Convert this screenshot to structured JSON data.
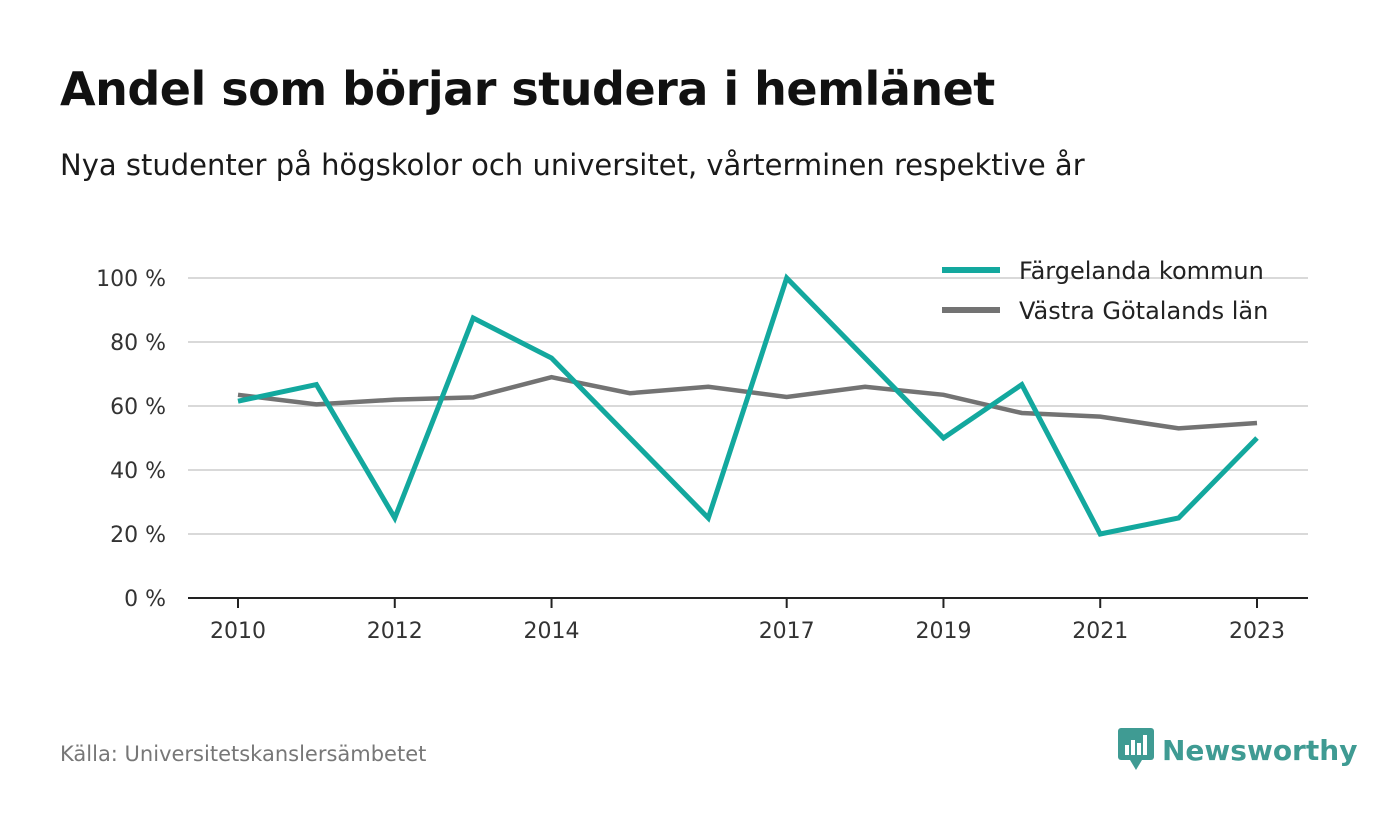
{
  "header": {
    "title": "Andel som börjar studera i hemlänet",
    "subtitle": "Nya studenter på högskolor och universitet, vårterminen respektive år"
  },
  "footer": {
    "source": "Källa: Universitetskanslersämbetet",
    "brand": "Newsworthy",
    "brand_icon": "newsworthy-logo-icon"
  },
  "colors": {
    "series_1": "#13a89e",
    "series_2": "#737373",
    "grid": "#d9d9d9",
    "axis": "#222222",
    "brand": "#3f9b93"
  },
  "chart_data": {
    "type": "line",
    "x": [
      2010,
      2011,
      2012,
      2013,
      2014,
      2015,
      2016,
      2017,
      2018,
      2019,
      2020,
      2021,
      2022,
      2023
    ],
    "x_ticks": [
      2010,
      2012,
      2014,
      2017,
      2019,
      2021,
      2023
    ],
    "x_tick_labels": [
      "2010",
      "2012",
      "2014",
      "2017",
      "2019",
      "2021",
      "2023"
    ],
    "ylim": [
      0,
      100
    ],
    "y_ticks": [
      0,
      20,
      40,
      60,
      80,
      100
    ],
    "y_tick_labels": [
      "0 %",
      "20 %",
      "40 %",
      "60 %",
      "80 %",
      "100 %"
    ],
    "grid": true,
    "legend_position": "top-right",
    "series": [
      {
        "name": "Färgelanda kommun",
        "values": [
          61.5,
          66.7,
          25,
          87.5,
          75,
          50,
          25,
          100,
          75,
          50,
          66.7,
          20,
          25,
          50
        ]
      },
      {
        "name": "Västra Götalands län",
        "values": [
          63.5,
          60.5,
          62,
          62.7,
          69,
          64,
          66,
          62.8,
          66,
          63.5,
          57.8,
          56.7,
          53,
          54.7
        ]
      }
    ]
  }
}
